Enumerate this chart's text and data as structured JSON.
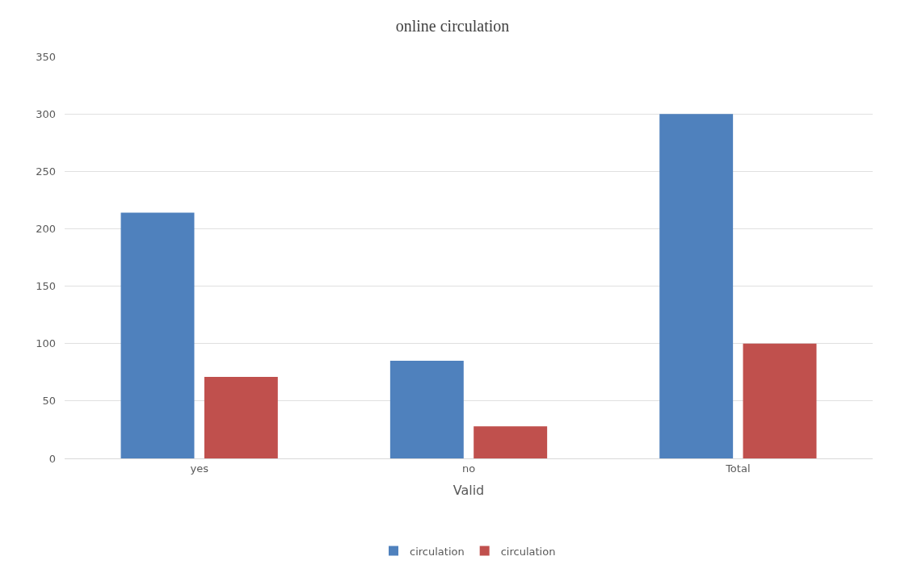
{
  "chart_data": {
    "type": "bar",
    "title": "online circulation",
    "xlabel": "Valid",
    "categories": [
      "yes",
      "no",
      "Total"
    ],
    "series": [
      {
        "name": "circulation",
        "color": "#4f81bd",
        "values": [
          214,
          85,
          300
        ]
      },
      {
        "name": "circulation",
        "color": "#c0504d",
        "values": [
          71,
          28,
          100
        ]
      }
    ],
    "ylim": [
      0,
      350
    ],
    "yticks": [
      0,
      50,
      100,
      150,
      200,
      250,
      300,
      350
    ],
    "grid": "y",
    "legend": "bottom"
  }
}
